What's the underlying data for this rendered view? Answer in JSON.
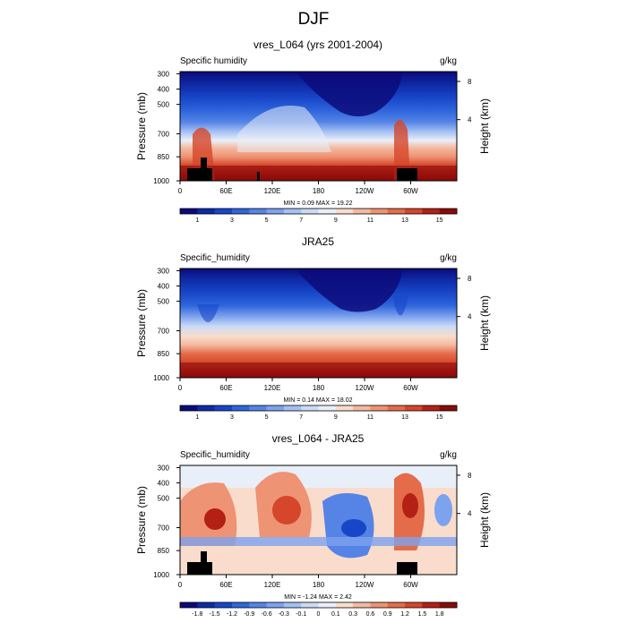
{
  "figure": {
    "title": "DJF"
  },
  "chart_data": [
    {
      "type": "heatmap",
      "title": "vres_L064 (yrs 2001-2004)",
      "left_label": "Specific humidity",
      "units": "g/kg",
      "ylabel": "Pressure (mb)",
      "y2label": "Height (km)",
      "xticks": [
        "0",
        "60E",
        "120E",
        "180",
        "120W",
        "60W"
      ],
      "yticks": [
        "300",
        "400",
        "500",
        "700",
        "850",
        "1000"
      ],
      "y2ticks": [
        "8",
        "4"
      ],
      "stats": "MIN =   0.09  MAX =  19.22",
      "colorbar_labels": [
        "1",
        "3",
        "5",
        "7",
        "9",
        "11",
        "13",
        "15"
      ],
      "colors": [
        "#0c0a7a",
        "#0e2aa6",
        "#1846c8",
        "#2f66dc",
        "#5584e6",
        "#7da2ee",
        "#a5c0f4",
        "#cadbf8",
        "#e9eff8",
        "#f9dccb",
        "#f4b9a0",
        "#ee9373",
        "#e46c4a",
        "#d5462a",
        "#b52014",
        "#8a0a0a"
      ]
    },
    {
      "type": "heatmap",
      "title": "JRA25",
      "left_label": "Specific_humidity",
      "units": "g/kg",
      "ylabel": "Pressure (mb)",
      "y2label": "Height (km)",
      "xticks": [
        "0",
        "60E",
        "120E",
        "180",
        "120W",
        "60W"
      ],
      "yticks": [
        "300",
        "400",
        "500",
        "700",
        "850",
        "1000"
      ],
      "y2ticks": [
        "8",
        "4"
      ],
      "stats": "MIN =   0.14  MAX =  18.02",
      "colorbar_labels": [
        "1",
        "3",
        "5",
        "7",
        "9",
        "11",
        "13",
        "15"
      ],
      "colors": [
        "#0c0a7a",
        "#0e2aa6",
        "#1846c8",
        "#2f66dc",
        "#5584e6",
        "#7da2ee",
        "#a5c0f4",
        "#cadbf8",
        "#e9eff8",
        "#f9dccb",
        "#f4b9a0",
        "#ee9373",
        "#e46c4a",
        "#d5462a",
        "#b52014",
        "#8a0a0a"
      ]
    },
    {
      "type": "heatmap",
      "title": "vres_L064 - JRA25",
      "left_label": "Specific_humidity",
      "units": "g/kg",
      "ylabel": "Pressure (mb)",
      "y2label": "Height (km)",
      "xticks": [
        "0",
        "60E",
        "120E",
        "180",
        "120W",
        "60W"
      ],
      "yticks": [
        "300",
        "400",
        "500",
        "700",
        "850",
        "1000"
      ],
      "y2ticks": [
        "8",
        "4"
      ],
      "stats": "MIN =  -1.24  MAX =   2.42",
      "colorbar_labels": [
        "-1.8",
        "-1.5",
        "-1.2",
        "-0.9",
        "-0.6",
        "-0.3",
        "-0.1",
        "0",
        "0.1",
        "0.3",
        "0.6",
        "0.9",
        "1.2",
        "1.5",
        "1.8"
      ],
      "colors": [
        "#0c0a7a",
        "#0e2aa6",
        "#1846c8",
        "#2f66dc",
        "#5584e6",
        "#7da2ee",
        "#a5c0f4",
        "#cadbf8",
        "#e9eff8",
        "#f9dccb",
        "#f4b9a0",
        "#ee9373",
        "#e46c4a",
        "#d5462a",
        "#b52014",
        "#8a0a0a"
      ]
    }
  ]
}
